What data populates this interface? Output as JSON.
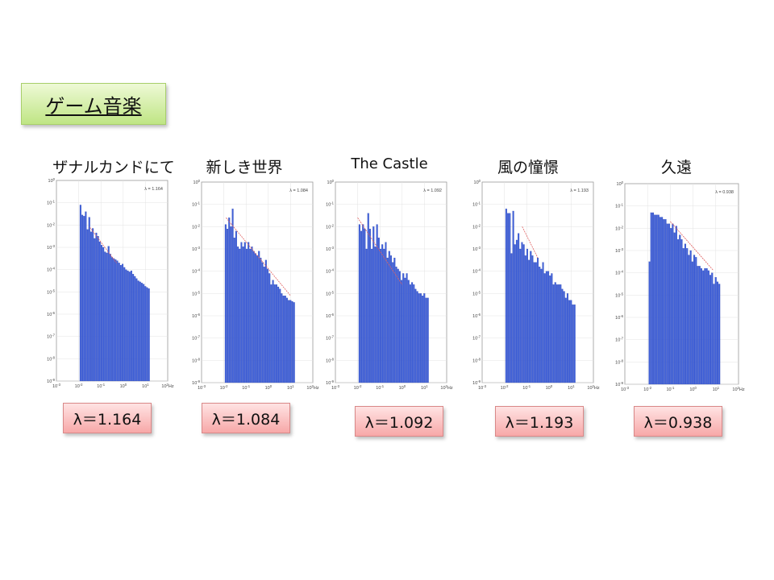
{
  "slide": {
    "title": "ゲーム音楽"
  },
  "colors": {
    "bar": "#3d5fd9",
    "bar_edge": "#2a3fa8",
    "fit_line": "#e06060",
    "grid": "#e3e3e3",
    "frame": "#9a9a9a",
    "title_box": "#bfe584",
    "lambda_box": "#f7a8a8"
  },
  "panels": [
    {
      "song_title": "ザナルカンドにて",
      "lambda_label": "λ＝1.164"
    },
    {
      "song_title": "新しき世界",
      "lambda_label": "λ＝1.084"
    },
    {
      "song_title": "The   Castle",
      "lambda_label": "λ＝1.092"
    },
    {
      "song_title": "風の憧憬",
      "lambda_label": "λ＝1.193"
    },
    {
      "song_title": "久遠",
      "lambda_label": "λ＝0.938"
    }
  ],
  "chart_data": [
    {
      "type": "bar",
      "scale": "log-log",
      "x_unit": "Hz",
      "annotation": "λ = 1.164",
      "lambda": 1.164,
      "x_ticks": [
        "10^-3",
        "10^-2",
        "10^-1",
        "10^0",
        "10^1",
        "10^2Hz"
      ],
      "y_ticks": [
        "10^0",
        "10^-1",
        "10^-2",
        "10^-3",
        "10^-4",
        "10^-5",
        "10^-6",
        "10^-7",
        "10^-8",
        "10^-9"
      ],
      "xlim_log10": [
        -3,
        2
      ],
      "ylim_log10": [
        -9,
        0
      ],
      "x_start_log10": -1.95,
      "x_end_log10": 1.2,
      "fit": [
        [
          -1.5,
          -2.1
        ],
        [
          -0.3,
          -3.7
        ]
      ],
      "values_log10": [
        -1.1,
        -1.55,
        -1.6,
        -1.4,
        -2.2,
        -1.65,
        -2.3,
        -2.15,
        -2.6,
        -2.35,
        -2.5,
        -2.75,
        -2.9,
        -3.0,
        -3.2,
        -3.25,
        -2.95,
        -3.3,
        -3.45,
        -3.5,
        -3.55,
        -3.6,
        -3.7,
        -3.8,
        -3.75,
        -3.9,
        -4.0,
        -4.05,
        -4.1,
        -4.05,
        -4.2,
        -4.3,
        -4.4,
        -4.5,
        -4.55,
        -4.6,
        -4.65,
        -4.75,
        -4.8,
        -4.85
      ]
    },
    {
      "type": "bar",
      "scale": "log-log",
      "x_unit": "Hz",
      "annotation": "λ = 1.084",
      "lambda": 1.084,
      "x_ticks": [
        "10^-3",
        "10^-2",
        "10^-1",
        "10^0",
        "10^1",
        "10^2Hz"
      ],
      "y_ticks": [
        "10^0",
        "10^-1",
        "10^-2",
        "10^-3",
        "10^-4",
        "10^-5",
        "10^-6",
        "10^-7",
        "10^-8",
        "10^-9"
      ],
      "xlim_log10": [
        -3,
        2
      ],
      "ylim_log10": [
        -9,
        0
      ],
      "x_start_log10": -1.95,
      "x_end_log10": 1.2,
      "fit": [
        [
          -1.9,
          -1.6
        ],
        [
          1.0,
          -5.1
        ]
      ],
      "values_log10": [
        -1.9,
        -2.1,
        -1.6,
        -2.0,
        -1.2,
        -2.5,
        -2.2,
        -2.9,
        -3.0,
        -2.7,
        -2.9,
        -2.7,
        -3.0,
        -2.7,
        -3.0,
        -2.9,
        -3.1,
        -3.2,
        -3.3,
        -3.1,
        -3.4,
        -3.6,
        -3.8,
        -3.5,
        -3.9,
        -4.1,
        -4.6,
        -4.4,
        -4.6,
        -4.6,
        -4.7,
        -4.8,
        -5.0,
        -5.1,
        -5.1,
        -5.2,
        -5.3,
        -5.3,
        -5.35,
        -5.4
      ]
    },
    {
      "type": "bar",
      "scale": "log-log",
      "x_unit": "Hz",
      "annotation": "λ = 1.092",
      "lambda": 1.092,
      "x_ticks": [
        "10^-3",
        "10^-2",
        "10^-1",
        "10^0",
        "10^1",
        "10^2Hz"
      ],
      "y_ticks": [
        "10^0",
        "10^-1",
        "10^-2",
        "10^-3",
        "10^-4",
        "10^-5",
        "10^-6",
        "10^-7",
        "10^-8",
        "10^-9"
      ],
      "xlim_log10": [
        -3,
        2
      ],
      "ylim_log10": [
        -9,
        0
      ],
      "x_start_log10": -1.95,
      "x_end_log10": 1.2,
      "fit": [
        [
          -2.0,
          -1.6
        ],
        [
          0.0,
          -4.6
        ]
      ],
      "values_log10": [
        -1.9,
        -2.2,
        -1.9,
        -2.1,
        -3.0,
        -1.4,
        -2.1,
        -3.0,
        -2.0,
        -2.9,
        -1.9,
        -2.5,
        -3.0,
        -2.8,
        -3.0,
        -2.7,
        -3.4,
        -3.1,
        -3.3,
        -3.6,
        -3.4,
        -3.8,
        -3.9,
        -4.0,
        -4.4,
        -4.1,
        -4.3,
        -4.1,
        -4.4,
        -4.6,
        -4.5,
        -4.6,
        -4.8,
        -4.9,
        -5.0,
        -5.0,
        -5.1,
        -5.0,
        -5.2,
        -5.2
      ]
    },
    {
      "type": "bar",
      "scale": "log-log",
      "x_unit": "Hz",
      "annotation": "λ = 1.193",
      "lambda": 1.193,
      "x_ticks": [
        "10^-3",
        "10^-2",
        "10^-1",
        "10^0",
        "10^1",
        "10^2Hz"
      ],
      "y_ticks": [
        "10^0",
        "10^-1",
        "10^-2",
        "10^-3",
        "10^-4",
        "10^-5",
        "10^-6",
        "10^-7",
        "10^-8",
        "10^-9"
      ],
      "xlim_log10": [
        -3,
        2
      ],
      "ylim_log10": [
        -9,
        0
      ],
      "x_start_log10": -1.95,
      "x_end_log10": 1.2,
      "fit": [
        [
          -1.2,
          -2.0
        ],
        [
          -0.5,
          -3.4
        ]
      ],
      "values_log10": [
        -1.2,
        -1.4,
        -1.4,
        -3.2,
        -1.3,
        -2.8,
        -2.6,
        -2.3,
        -3.0,
        -2.7,
        -2.8,
        -3.3,
        -3.0,
        -3.5,
        -3.1,
        -3.3,
        -3.6,
        -3.6,
        -3.4,
        -3.8,
        -3.9,
        -3.6,
        -4.1,
        -4.0,
        -4.0,
        -4.2,
        -4.1,
        -4.6,
        -4.5,
        -4.6,
        -4.6,
        -4.6,
        -4.8,
        -4.9,
        -5.2,
        -5.0,
        -5.3,
        -5.3,
        -5.5,
        -5.5
      ]
    },
    {
      "type": "bar",
      "scale": "log-log",
      "x_unit": "Hz",
      "annotation": "λ = 0.938",
      "lambda": 0.938,
      "x_ticks": [
        "10^-3",
        "10^-2",
        "10^-1",
        "10^0",
        "10^1",
        "10^2Hz"
      ],
      "y_ticks": [
        "10^0",
        "10^-1",
        "10^-2",
        "10^-3",
        "10^-4",
        "10^-5",
        "10^-6",
        "10^-7",
        "10^-8",
        "10^-9"
      ],
      "xlim_log10": [
        -3,
        2
      ],
      "ylim_log10": [
        -9,
        0
      ],
      "x_start_log10": -1.95,
      "x_end_log10": 1.2,
      "fit": [
        [
          -1.0,
          -1.7
        ],
        [
          0.9,
          -3.9
        ]
      ],
      "values_log10": [
        -3.5,
        -1.3,
        -1.3,
        -1.4,
        -1.4,
        -1.4,
        -1.5,
        -1.5,
        -1.6,
        -1.6,
        -1.8,
        -1.8,
        -2.0,
        -1.8,
        -2.2,
        -1.9,
        -2.5,
        -2.3,
        -2.5,
        -2.9,
        -2.7,
        -2.9,
        -3.2,
        -3.0,
        -3.5,
        -3.2,
        -3.3,
        -3.7,
        -3.7,
        -3.8,
        -3.9,
        -3.8,
        -3.8,
        -3.9,
        -4.1,
        -4.0,
        -4.5,
        -4.2,
        -4.4,
        -4.5
      ]
    }
  ]
}
